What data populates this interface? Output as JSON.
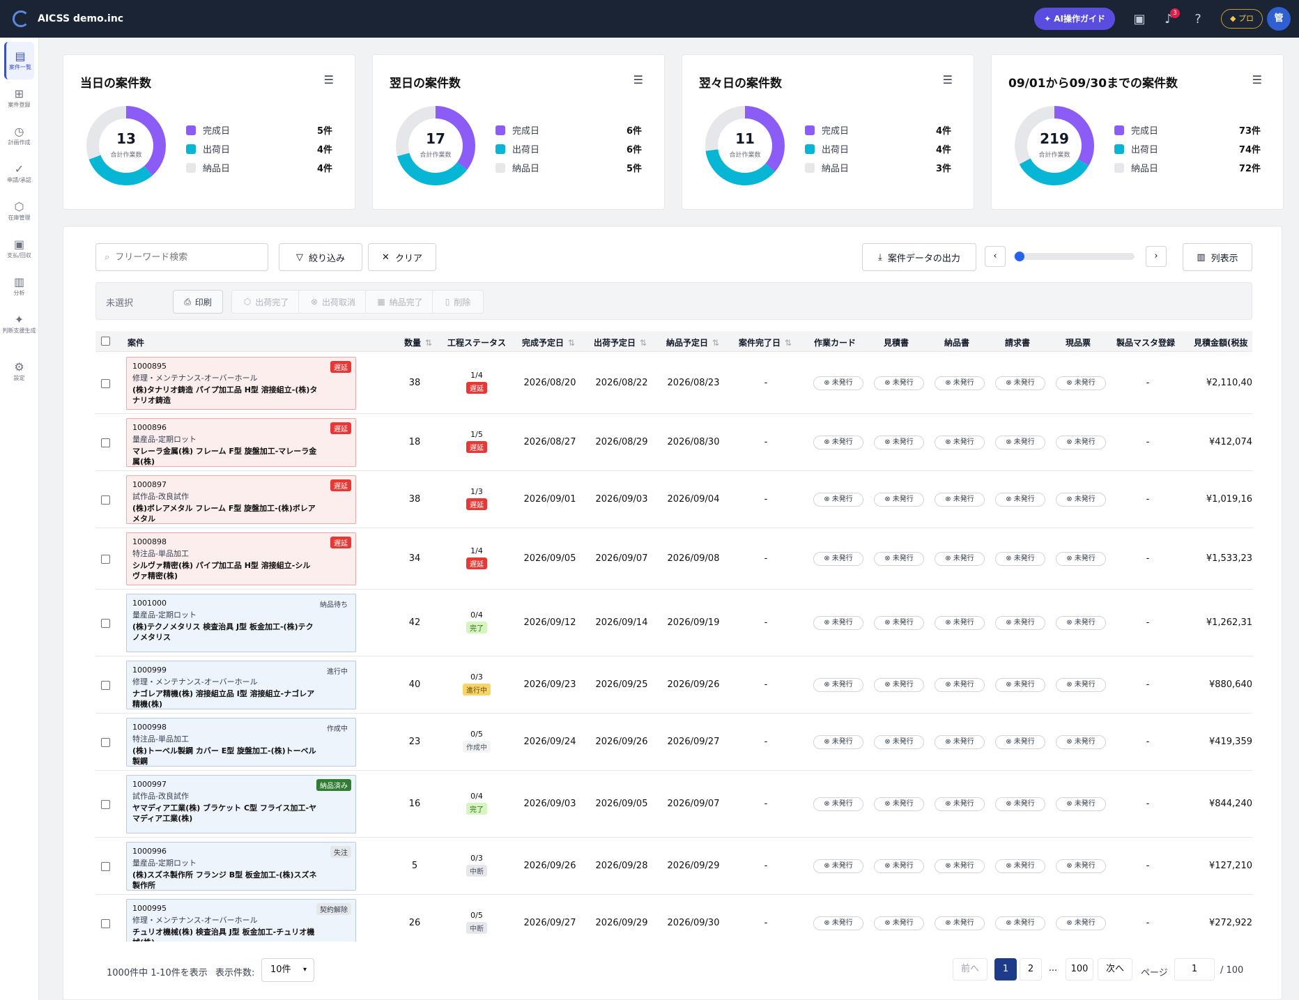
{
  "app": {
    "title": "AICSS demo.inc",
    "ai_button": "AI操作ガイド",
    "notification_count": "3",
    "plan": "プロ",
    "user_initial": "管"
  },
  "sidebar": [
    {
      "label": "案件一覧",
      "icon": "clipboard-list-icon",
      "glyph": "▤"
    },
    {
      "label": "案件登録",
      "icon": "file-plus-icon",
      "glyph": "⊞"
    },
    {
      "label": "計画作成",
      "icon": "calendar-clock-icon",
      "glyph": "◷"
    },
    {
      "label": "申請/承認",
      "icon": "check-circle-icon",
      "glyph": "✓"
    },
    {
      "label": "在庫管理",
      "icon": "box-icon",
      "glyph": "⬡"
    },
    {
      "label": "支払/回収",
      "icon": "wallet-icon",
      "glyph": "▣"
    },
    {
      "label": "分析",
      "icon": "bar-chart-icon",
      "glyph": "▥"
    },
    {
      "label": "判断支援生成",
      "icon": "sparkles-icon",
      "glyph": "✦"
    },
    {
      "label": "設定",
      "icon": "gear-icon",
      "glyph": "⚙"
    }
  ],
  "colors": {
    "complete": "#8b5cf6",
    "ship": "#06b6d4",
    "deliver": "#e5e7eb"
  },
  "legend_labels": {
    "complete": "完成日",
    "ship": "出荷日",
    "deliver": "納品日"
  },
  "summary_cards": [
    {
      "title": "当日の案件数",
      "total": "13",
      "total_label": "合計作業数",
      "complete": 5,
      "ship": 4,
      "deliver": 4,
      "complete_text": "5件",
      "ship_text": "4件",
      "deliver_text": "4件"
    },
    {
      "title": "翌日の案件数",
      "total": "17",
      "total_label": "合計作業数",
      "complete": 6,
      "ship": 6,
      "deliver": 5,
      "complete_text": "6件",
      "ship_text": "6件",
      "deliver_text": "5件"
    },
    {
      "title": "翌々日の案件数",
      "total": "11",
      "total_label": "合計作業数",
      "complete": 4,
      "ship": 4,
      "deliver": 3,
      "complete_text": "4件",
      "ship_text": "4件",
      "deliver_text": "3件"
    },
    {
      "title": "09/01から09/30までの案件数",
      "total": "219",
      "total_label": "合計作業数",
      "complete": 73,
      "ship": 74,
      "deliver": 72,
      "complete_text": "73件",
      "ship_text": "74件",
      "deliver_text": "72件"
    }
  ],
  "toolbar": {
    "search_placeholder": "フリーワード検索",
    "filter": "絞り込み",
    "clear": "クリア",
    "export": "案件データの出力",
    "columns": "列表示",
    "scroll_position": 0
  },
  "actions": {
    "unselected": "未選択",
    "print": "印刷",
    "ship_done": "出荷完了",
    "ship_cancel": "出荷取消",
    "deliver_done": "納品完了",
    "delete": "削除"
  },
  "table": {
    "headers": {
      "case": "案件",
      "qty": "数量",
      "status": "工程ステータス",
      "complete_date": "完成予定日",
      "ship_date": "出荷予定日",
      "deliver_date": "納品予定日",
      "done_date": "案件完了日",
      "work_card": "作業カード",
      "estimate": "見積書",
      "delivery_note": "納品書",
      "invoice": "請求書",
      "tag": "現品票",
      "master": "製品マスタ登録",
      "amount": "見積金額(税抜"
    },
    "doc_status": "未発行",
    "rows": [
      {
        "id": "1000895",
        "type": "修理・メンテナンス-オーバーホール",
        "name": "(株)タナリオ鋳造 パイプ加工品 H型 溶接組立-(株)タナリオ鋳造",
        "tag": "遅延",
        "tagcls": "tag-red",
        "red": true,
        "qty": "38",
        "prog": "1/4",
        "pstat": "遅延",
        "pcls": "p-red",
        "d1": "2026/08/20",
        "d2": "2026/08/22",
        "d3": "2026/08/23",
        "done": "-",
        "master": "-",
        "amount": "¥2,110,40"
      },
      {
        "id": "1000896",
        "type": "量産品-定期ロット",
        "name": "マレーラ金属(株) フレーム F型 旋盤加工-マレーラ金属(株)",
        "tag": "遅延",
        "tagcls": "tag-red",
        "red": true,
        "qty": "18",
        "prog": "1/5",
        "pstat": "遅延",
        "pcls": "p-red",
        "d1": "2026/08/27",
        "d2": "2026/08/29",
        "d3": "2026/08/30",
        "done": "-",
        "master": "-",
        "amount": "¥412,074"
      },
      {
        "id": "1000897",
        "type": "試作品-改良試作",
        "name": "(株)ボレアメタル フレーム F型 旋盤加工-(株)ボレアメタル",
        "tag": "遅延",
        "tagcls": "tag-red",
        "red": true,
        "qty": "38",
        "prog": "1/3",
        "pstat": "遅延",
        "pcls": "p-red",
        "d1": "2026/09/01",
        "d2": "2026/09/03",
        "d3": "2026/09/04",
        "done": "-",
        "master": "-",
        "amount": "¥1,019,16"
      },
      {
        "id": "1000898",
        "type": "特注品-単品加工",
        "name": "シルヴァ精密(株) パイプ加工品 H型 溶接組立-シルヴァ精密(株)",
        "tag": "遅延",
        "tagcls": "tag-red",
        "red": true,
        "qty": "34",
        "prog": "1/4",
        "pstat": "遅延",
        "pcls": "p-red",
        "d1": "2026/09/05",
        "d2": "2026/09/07",
        "d3": "2026/09/08",
        "done": "-",
        "master": "-",
        "amount": "¥1,533,23"
      },
      {
        "id": "1001000",
        "type": "量産品-定期ロット",
        "name": "(株)テクノメタリス 検査治具 J型 板金加工-(株)テクノメタリス",
        "tag": "納品待ち",
        "tagcls": "tag-plain",
        "red": false,
        "qty": "42",
        "prog": "0/4",
        "pstat": "完了",
        "pcls": "p-green",
        "d1": "2026/09/12",
        "d2": "2026/09/14",
        "d3": "2026/09/19",
        "done": "-",
        "master": "-",
        "amount": "¥1,262,31"
      },
      {
        "id": "1000999",
        "type": "修理・メンテナンス-オーバーホール",
        "name": "ナゴレア精機(株) 溶接組立品 I型 溶接組立-ナゴレア精機(株)",
        "tag": "進行中",
        "tagcls": "tag-plain",
        "red": false,
        "qty": "40",
        "prog": "0/3",
        "pstat": "進行中",
        "pcls": "p-yellow",
        "d1": "2026/09/23",
        "d2": "2026/09/25",
        "d3": "2026/09/26",
        "done": "-",
        "master": "-",
        "amount": "¥880,640"
      },
      {
        "id": "1000998",
        "type": "特注品-単品加工",
        "name": "(株)トーベル製鋼 カバー E型 旋盤加工-(株)トーベル製鋼",
        "tag": "作成中",
        "tagcls": "tag-plain",
        "red": false,
        "qty": "23",
        "prog": "0/5",
        "pstat": "作成中",
        "pcls": "p-light",
        "d1": "2026/09/24",
        "d2": "2026/09/26",
        "d3": "2026/09/27",
        "done": "-",
        "master": "-",
        "amount": "¥419,359"
      },
      {
        "id": "1000997",
        "type": "試作品-改良試作",
        "name": "ヤマディア工業(株) ブラケット C型 フライス加工-ヤマディア工業(株)",
        "tag": "納品済み",
        "tagcls": "tag-green",
        "red": false,
        "qty": "16",
        "prog": "0/4",
        "pstat": "完了",
        "pcls": "p-green",
        "d1": "2026/09/03",
        "d2": "2026/09/05",
        "d3": "2026/09/07",
        "done": "-",
        "master": "-",
        "amount": "¥844,240"
      },
      {
        "id": "1000996",
        "type": "量産品-定期ロット",
        "name": "(株)スズネ製作所 フランジ B型 板金加工-(株)スズネ製作所",
        "tag": "失注",
        "tagcls": "tag-gray",
        "red": false,
        "qty": "5",
        "prog": "0/3",
        "pstat": "中断",
        "pcls": "p-gray",
        "d1": "2026/09/26",
        "d2": "2026/09/28",
        "d3": "2026/09/29",
        "done": "-",
        "master": "-",
        "amount": "¥127,210"
      },
      {
        "id": "1000995",
        "type": "修理・メンテナンス-オーバーホール",
        "name": "チュリオ機械(株) 検査治具 J型 板金加工-チュリオ機械(株)",
        "tag": "契約解除",
        "tagcls": "tag-gray",
        "red": false,
        "qty": "26",
        "prog": "0/5",
        "pstat": "中断",
        "pcls": "p-gray",
        "d1": "2026/09/27",
        "d2": "2026/09/29",
        "d3": "2026/09/30",
        "done": "-",
        "master": "-",
        "amount": "¥272,922"
      }
    ]
  },
  "footer": {
    "summary": "1000件中 1-10件を表示",
    "per_page_label": "表示件数:",
    "per_page": "10件",
    "prev": "前へ",
    "next": "次へ",
    "pages": [
      "1",
      "2",
      "...",
      "100"
    ],
    "page_label": "ページ",
    "page_value": "1",
    "page_total": "/ 100"
  }
}
